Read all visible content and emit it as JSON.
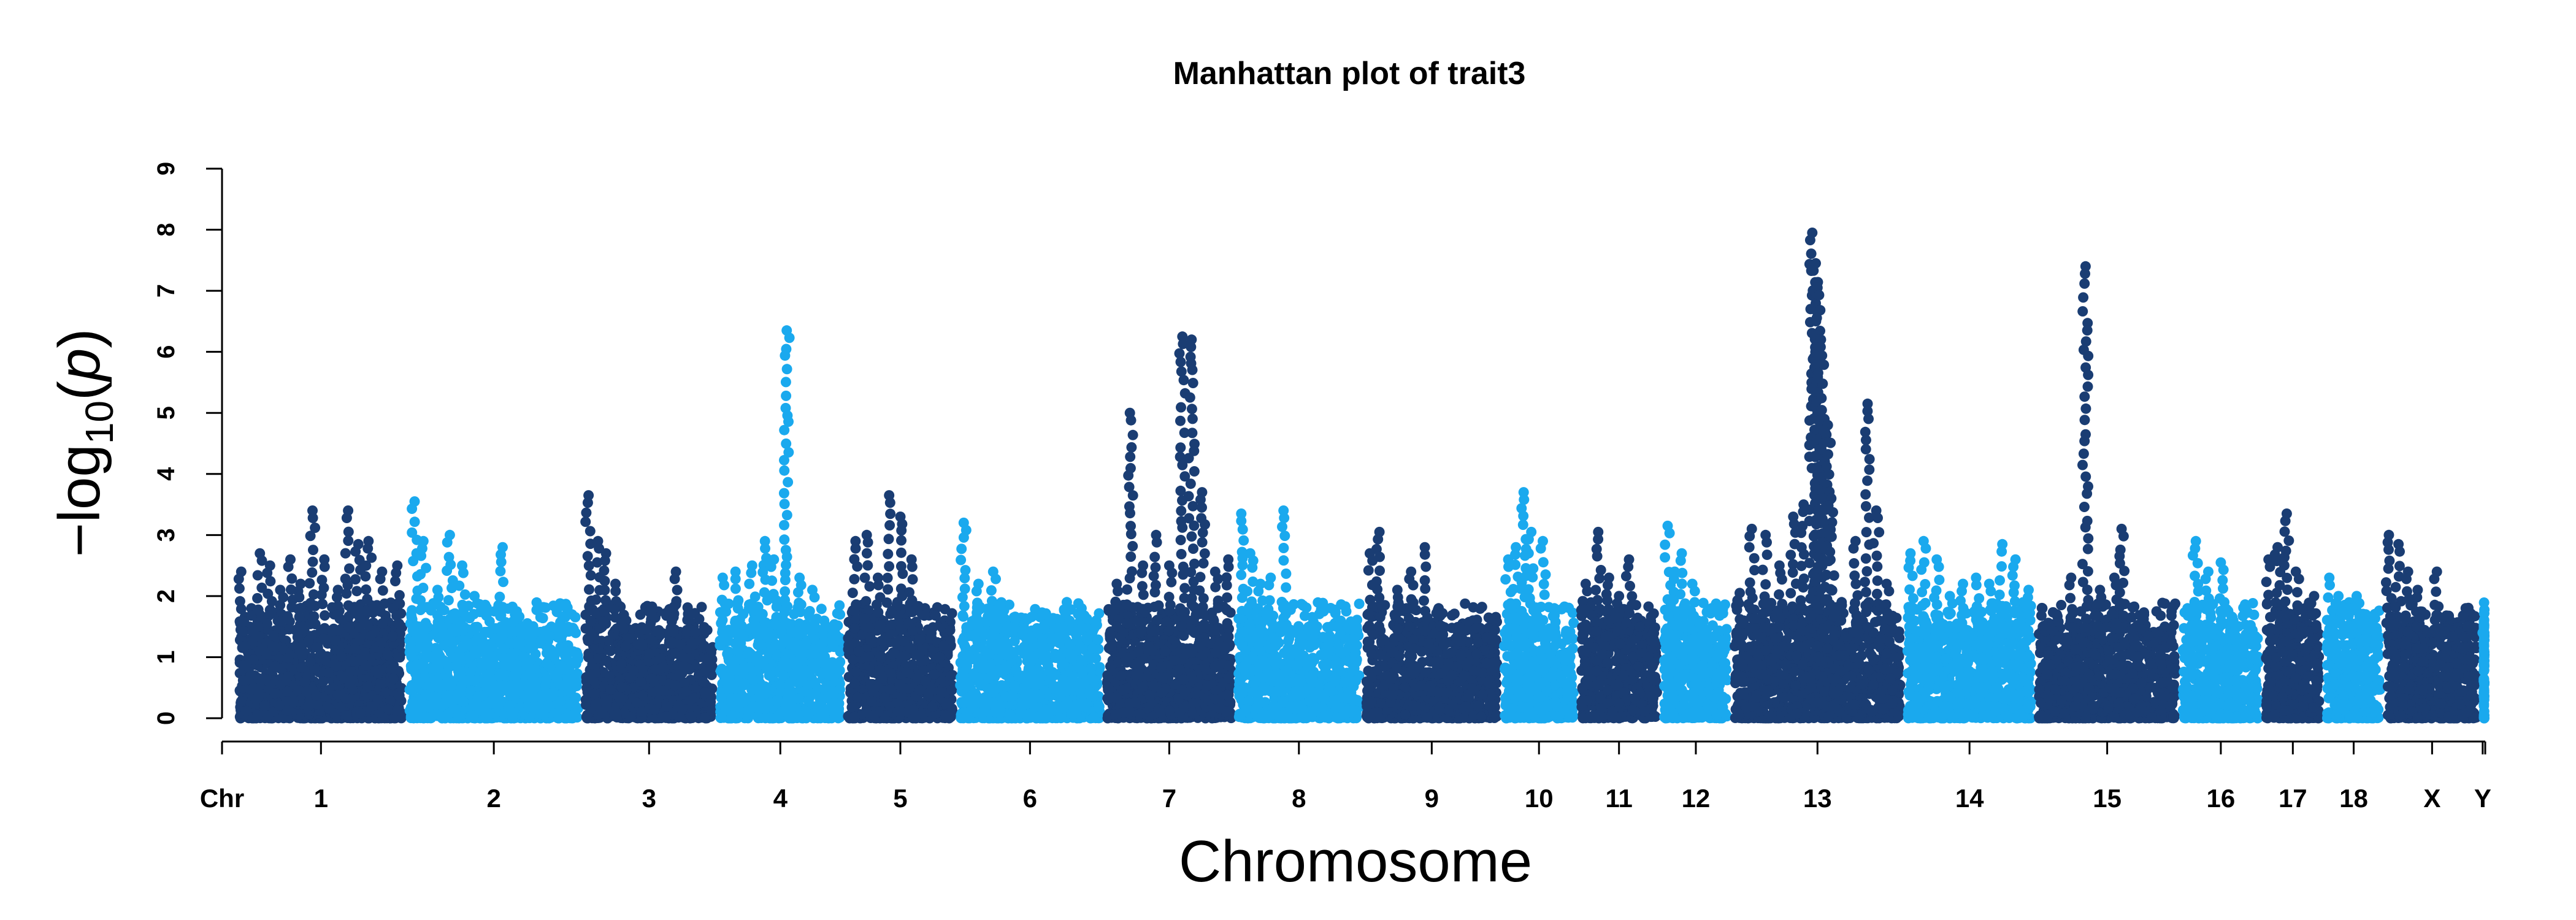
{
  "chart_data": {
    "type": "scatter",
    "title": "Manhattan plot of trait3",
    "xlabel": "Chromosome",
    "ylabel_parts": {
      "minus": "−",
      "log": "log",
      "base": "10",
      "open": "(",
      "var": "p",
      "close": ")"
    },
    "ylim": [
      0,
      9
    ],
    "yticks": [
      0,
      1,
      2,
      3,
      4,
      5,
      6,
      7,
      8,
      9
    ],
    "x_axis_prefix": "Chr",
    "colors": {
      "dark": "#1a3d73",
      "light": "#1aa9ee"
    },
    "grid": false,
    "legend": "none",
    "chromosomes": [
      {
        "name": "1",
        "length": 265,
        "color": "dark",
        "peaks": [
          [
            0.03,
            2.4
          ],
          [
            0.09,
            1.8
          ],
          [
            0.14,
            2.7
          ],
          [
            0.2,
            2.5
          ],
          [
            0.26,
            2.1
          ],
          [
            0.32,
            2.6
          ],
          [
            0.38,
            2.2
          ],
          [
            0.45,
            3.4
          ],
          [
            0.52,
            2.6
          ],
          [
            0.6,
            2.1
          ],
          [
            0.66,
            3.4
          ],
          [
            0.72,
            2.85
          ],
          [
            0.78,
            2.9
          ],
          [
            0.86,
            2.4
          ],
          [
            0.95,
            2.5
          ]
        ]
      },
      {
        "name": "2",
        "length": 275,
        "color": "light",
        "peaks": [
          [
            0.05,
            3.55
          ],
          [
            0.1,
            2.9
          ],
          [
            0.18,
            2.1
          ],
          [
            0.25,
            3.0
          ],
          [
            0.32,
            2.5
          ],
          [
            0.39,
            2.0
          ],
          [
            0.55,
            2.8
          ],
          [
            0.62,
            1.7
          ],
          [
            0.7,
            1.4
          ],
          [
            0.8,
            0.9
          ],
          [
            0.9,
            0.8
          ]
        ]
      },
      {
        "name": "3",
        "length": 210,
        "color": "dark",
        "peaks": [
          [
            0.05,
            3.65
          ],
          [
            0.12,
            2.9
          ],
          [
            0.18,
            2.7
          ],
          [
            0.25,
            2.2
          ],
          [
            0.33,
            1.6
          ],
          [
            0.45,
            1.2
          ],
          [
            0.55,
            0.8
          ],
          [
            0.7,
            2.4
          ],
          [
            0.8,
            0.8
          ],
          [
            0.9,
            0.6
          ]
        ]
      },
      {
        "name": "4",
        "length": 200,
        "color": "light",
        "peaks": [
          [
            0.05,
            2.3
          ],
          [
            0.15,
            2.4
          ],
          [
            0.28,
            2.5
          ],
          [
            0.38,
            2.9
          ],
          [
            0.45,
            2.6
          ],
          [
            0.55,
            6.35
          ],
          [
            0.65,
            2.3
          ],
          [
            0.75,
            2.1
          ],
          [
            0.85,
            1.5
          ]
        ]
      },
      {
        "name": "5",
        "length": 175,
        "color": "dark",
        "peaks": [
          [
            0.1,
            2.9
          ],
          [
            0.2,
            3.0
          ],
          [
            0.3,
            2.3
          ],
          [
            0.4,
            3.65
          ],
          [
            0.5,
            3.3
          ],
          [
            0.6,
            2.6
          ],
          [
            0.72,
            1.8
          ],
          [
            0.85,
            1.0
          ]
        ]
      },
      {
        "name": "6",
        "length": 230,
        "color": "light",
        "peaks": [
          [
            0.05,
            3.2
          ],
          [
            0.15,
            2.2
          ],
          [
            0.25,
            2.4
          ],
          [
            0.35,
            1.5
          ],
          [
            0.45,
            1.4
          ],
          [
            0.55,
            1.4
          ],
          [
            0.65,
            1.3
          ],
          [
            0.75,
            1.9
          ],
          [
            0.85,
            1.8
          ],
          [
            0.95,
            1.6
          ]
        ]
      },
      {
        "name": "7",
        "length": 205,
        "color": "dark",
        "peaks": [
          [
            0.1,
            2.2
          ],
          [
            0.2,
            5.0
          ],
          [
            0.3,
            2.5
          ],
          [
            0.4,
            3.0
          ],
          [
            0.5,
            2.5
          ],
          [
            0.6,
            6.25
          ],
          [
            0.67,
            6.2
          ],
          [
            0.75,
            3.7
          ],
          [
            0.85,
            2.4
          ],
          [
            0.95,
            2.6
          ]
        ]
      },
      {
        "name": "8",
        "length": 200,
        "color": "light",
        "peaks": [
          [
            0.05,
            3.35
          ],
          [
            0.12,
            2.7
          ],
          [
            0.2,
            2.2
          ],
          [
            0.28,
            2.3
          ],
          [
            0.38,
            3.4
          ],
          [
            0.5,
            1.4
          ],
          [
            0.62,
            1.2
          ],
          [
            0.75,
            1.5
          ],
          [
            0.88,
            0.6
          ]
        ]
      },
      {
        "name": "9",
        "length": 215,
        "color": "dark",
        "peaks": [
          [
            0.05,
            2.7
          ],
          [
            0.12,
            3.05
          ],
          [
            0.25,
            2.1
          ],
          [
            0.35,
            2.4
          ],
          [
            0.45,
            2.8
          ],
          [
            0.55,
            1.8
          ],
          [
            0.68,
            1.3
          ],
          [
            0.8,
            1.6
          ],
          [
            0.9,
            0.9
          ]
        ]
      },
      {
        "name": "10",
        "length": 120,
        "color": "light",
        "peaks": [
          [
            0.1,
            2.6
          ],
          [
            0.2,
            2.8
          ],
          [
            0.3,
            3.7
          ],
          [
            0.4,
            3.05
          ],
          [
            0.55,
            2.9
          ],
          [
            0.7,
            1.8
          ],
          [
            0.85,
            1.0
          ]
        ]
      },
      {
        "name": "11",
        "length": 130,
        "color": "dark",
        "peaks": [
          [
            0.1,
            2.2
          ],
          [
            0.25,
            3.05
          ],
          [
            0.38,
            2.3
          ],
          [
            0.5,
            2.0
          ],
          [
            0.62,
            2.6
          ],
          [
            0.75,
            1.5
          ],
          [
            0.85,
            1.0
          ]
        ]
      },
      {
        "name": "12",
        "length": 110,
        "color": "light",
        "peaks": [
          [
            0.1,
            3.15
          ],
          [
            0.2,
            2.4
          ],
          [
            0.3,
            2.7
          ],
          [
            0.45,
            2.2
          ],
          [
            0.6,
            1.4
          ],
          [
            0.8,
            1.8
          ],
          [
            0.9,
            0.7
          ]
        ]
      },
      {
        "name": "13",
        "length": 270,
        "color": "dark",
        "peaks": [
          [
            0.05,
            2.05
          ],
          [
            0.12,
            3.1
          ],
          [
            0.2,
            3.0
          ],
          [
            0.28,
            2.5
          ],
          [
            0.36,
            3.3
          ],
          [
            0.42,
            3.5
          ],
          [
            0.47,
            7.95
          ],
          [
            0.49,
            7.45
          ],
          [
            0.5,
            7.05
          ],
          [
            0.52,
            6.2
          ],
          [
            0.54,
            4.9
          ],
          [
            0.56,
            4.8
          ],
          [
            0.58,
            3.6
          ],
          [
            0.64,
            1.9
          ],
          [
            0.72,
            2.9
          ],
          [
            0.79,
            5.15
          ],
          [
            0.84,
            3.4
          ],
          [
            0.9,
            2.2
          ],
          [
            0.95,
            1.0
          ]
        ]
      },
      {
        "name": "14",
        "length": 205,
        "color": "light",
        "peaks": [
          [
            0.05,
            2.7
          ],
          [
            0.15,
            2.9
          ],
          [
            0.25,
            2.6
          ],
          [
            0.35,
            2.0
          ],
          [
            0.45,
            2.2
          ],
          [
            0.55,
            2.3
          ],
          [
            0.65,
            2.2
          ],
          [
            0.75,
            2.85
          ],
          [
            0.85,
            2.6
          ],
          [
            0.95,
            2.1
          ]
        ]
      },
      {
        "name": "15",
        "length": 225,
        "color": "dark",
        "peaks": [
          [
            0.05,
            1.8
          ],
          [
            0.15,
            1.7
          ],
          [
            0.25,
            2.3
          ],
          [
            0.35,
            7.4
          ],
          [
            0.45,
            2.1
          ],
          [
            0.55,
            2.3
          ],
          [
            0.6,
            3.1
          ],
          [
            0.7,
            1.2
          ],
          [
            0.8,
            0.9
          ],
          [
            0.9,
            1.5
          ]
        ]
      },
      {
        "name": "16",
        "length": 130,
        "color": "light",
        "peaks": [
          [
            0.1,
            1.8
          ],
          [
            0.2,
            2.9
          ],
          [
            0.35,
            2.4
          ],
          [
            0.5,
            2.55
          ],
          [
            0.65,
            1.6
          ],
          [
            0.8,
            1.3
          ],
          [
            0.92,
            0.8
          ]
        ]
      },
      {
        "name": "17",
        "length": 95,
        "color": "dark",
        "peaks": [
          [
            0.1,
            2.6
          ],
          [
            0.25,
            2.8
          ],
          [
            0.4,
            3.35
          ],
          [
            0.55,
            2.4
          ],
          [
            0.7,
            1.8
          ],
          [
            0.85,
            2.0
          ]
        ]
      },
      {
        "name": "18",
        "length": 95,
        "color": "light",
        "peaks": [
          [
            0.1,
            2.3
          ],
          [
            0.25,
            2.0
          ],
          [
            0.4,
            1.8
          ],
          [
            0.55,
            2.0
          ],
          [
            0.7,
            1.7
          ],
          [
            0.85,
            1.2
          ]
        ]
      },
      {
        "name": "X",
        "length": 150,
        "color": "dark",
        "peaks": [
          [
            0.05,
            3.0
          ],
          [
            0.15,
            2.85
          ],
          [
            0.25,
            2.4
          ],
          [
            0.35,
            2.1
          ],
          [
            0.45,
            1.4
          ],
          [
            0.55,
            2.4
          ],
          [
            0.65,
            1.1
          ],
          [
            0.75,
            0.9
          ],
          [
            0.85,
            1.8
          ],
          [
            0.95,
            0.7
          ]
        ]
      },
      {
        "name": "Y",
        "length": 8,
        "color": "light",
        "peaks": [
          [
            0.5,
            1.4
          ]
        ]
      }
    ]
  }
}
